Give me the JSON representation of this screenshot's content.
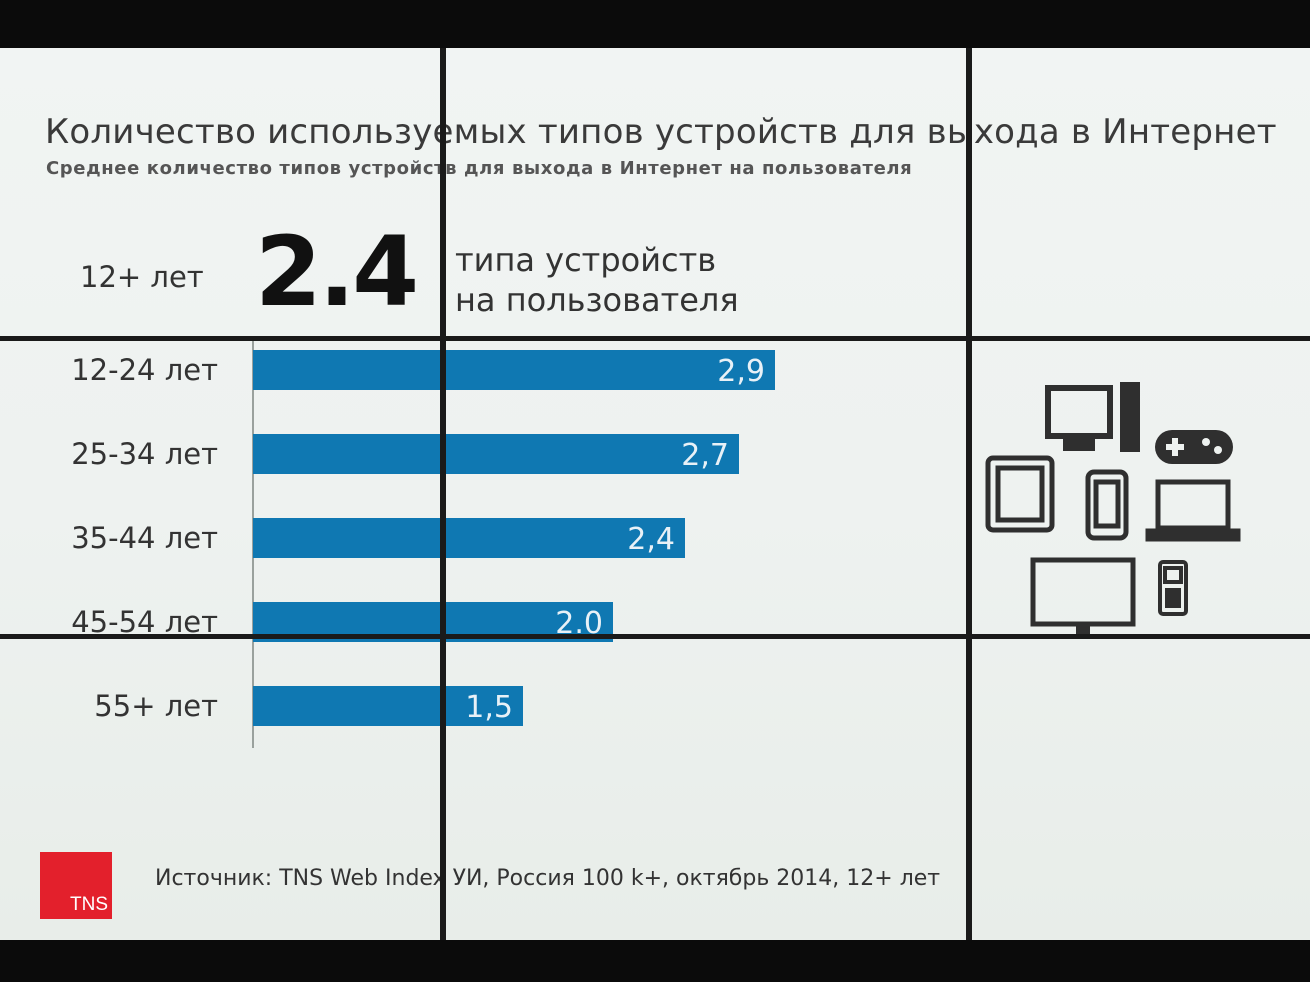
{
  "title": "Количество используемых типов устройств для выхода в Интернет",
  "subtitle": "Среднее количество типов устройств для выхода в Интернет на пользователя",
  "overall": {
    "label": "12+ лет",
    "value": "2.4",
    "text_line1": "типа устройств",
    "text_line2": "на пользователя"
  },
  "chart_data": {
    "type": "bar",
    "orientation": "horizontal",
    "categories": [
      "12-24 лет",
      "25-34 лет",
      "35-44 лет",
      "45-54 лет",
      "55+ лет"
    ],
    "values": [
      2.9,
      2.7,
      2.4,
      2.0,
      1.5
    ],
    "value_labels": [
      "2,9",
      "2,7",
      "2,4",
      "2.0",
      "1,5"
    ],
    "bar_color": "#0f78b2"
  },
  "devices_icons": [
    "desktop-monitor-icon",
    "game-controller-icon",
    "tablet-icon",
    "smartphone-icon",
    "laptop-icon",
    "tv-icon",
    "mobile-phone-icon"
  ],
  "logo": {
    "text": "TNS",
    "color": "#e3202c"
  },
  "source": "Источник: TNS Web Index УИ, Россия 100 k+, октябрь 2014, 12+ лет"
}
